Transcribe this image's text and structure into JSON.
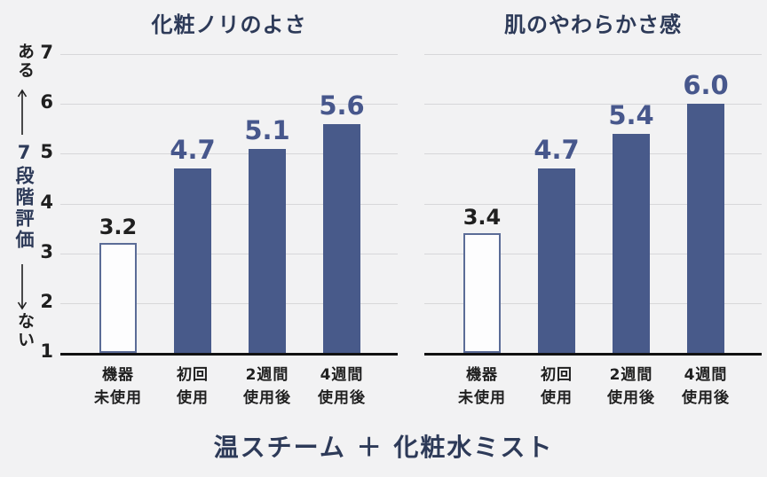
{
  "caption": "温スチーム ＋ 化粧水ミスト",
  "axis": {
    "top_label": "ある",
    "bottom_label": "ない",
    "scale_label": "7段階評価"
  },
  "colors": {
    "background": "#f2f2f3",
    "bar": "#485a8a",
    "bar_outline_fill": "#fdfdfe",
    "bar_outline_border": "#5b6c97",
    "title": "#2d3a58",
    "value_navy": "#47578c",
    "value_dark": "#1f1f1f",
    "grid": "#d7d7d9",
    "baseline": "#111111"
  },
  "chart_data": [
    {
      "type": "bar",
      "title": "化粧ノリのよさ",
      "categories": [
        [
          "機器",
          "未使用"
        ],
        [
          "初回",
          "使用"
        ],
        [
          "2週間",
          "使用後"
        ],
        [
          "4週間",
          "使用後"
        ]
      ],
      "values": [
        3.2,
        4.7,
        5.1,
        5.6
      ],
      "value_labels": [
        "3.2",
        "4.7",
        "5.1",
        "5.6"
      ],
      "bar_styles": [
        "outline",
        "solid",
        "solid",
        "solid"
      ],
      "ylim": [
        1,
        7
      ],
      "yticks": [
        1,
        2,
        3,
        4,
        5,
        6,
        7
      ],
      "show_tick_labels": true,
      "grid": true,
      "legend": "none",
      "xlabel": "",
      "ylabel": "7段階評価"
    },
    {
      "type": "bar",
      "title": "肌のやわらかさ感",
      "categories": [
        [
          "機器",
          "未使用"
        ],
        [
          "初回",
          "使用"
        ],
        [
          "2週間",
          "使用後"
        ],
        [
          "4週間",
          "使用後"
        ]
      ],
      "values": [
        3.4,
        4.7,
        5.4,
        6.0
      ],
      "value_labels": [
        "3.4",
        "4.7",
        "5.4",
        "6.0"
      ],
      "bar_styles": [
        "outline",
        "solid",
        "solid",
        "solid"
      ],
      "ylim": [
        1,
        7
      ],
      "yticks": [
        1,
        2,
        3,
        4,
        5,
        6,
        7
      ],
      "show_tick_labels": false,
      "grid": true,
      "legend": "none",
      "xlabel": "",
      "ylabel": "7段階評価"
    }
  ]
}
